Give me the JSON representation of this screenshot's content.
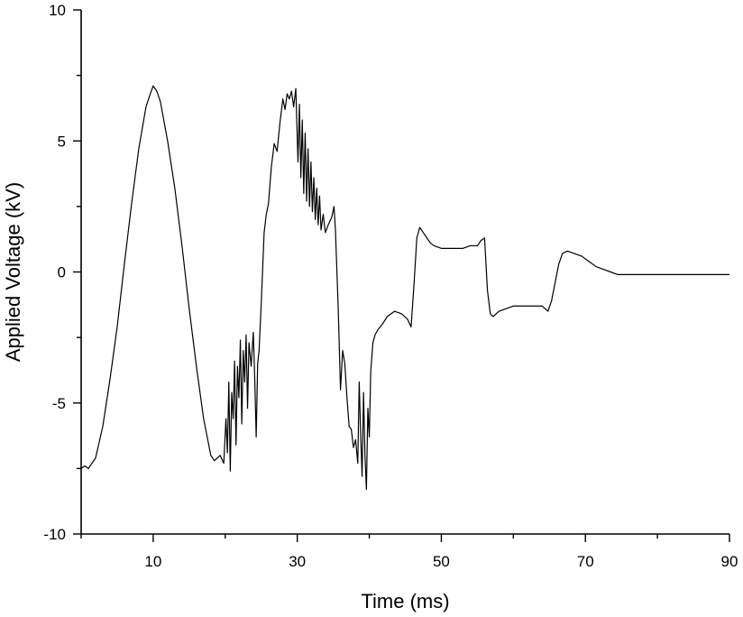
{
  "chart_data": {
    "type": "line",
    "xlabel": "Time (ms)",
    "ylabel": "Applied Voltage (kV)",
    "xlim": [
      0,
      90
    ],
    "ylim": [
      -10,
      10
    ],
    "x_ticks_major": [
      10,
      30,
      50,
      70,
      90
    ],
    "x_ticks_minor": [
      0,
      20,
      40,
      60,
      80
    ],
    "y_ticks_major": [
      -10,
      -5,
      0,
      5,
      10
    ],
    "y_ticks_minor": [
      -7.5,
      -2.5,
      2.5,
      7.5
    ],
    "grid": false,
    "series": [
      {
        "color": "#000000",
        "x": [
          0,
          0.5,
          1,
          2,
          3,
          4,
          5,
          6,
          7,
          8,
          9,
          9.6,
          10,
          10.5,
          11,
          12,
          13,
          14,
          15,
          16,
          17,
          18,
          18.5,
          19.3,
          19.8,
          20.1,
          20.3,
          20.5,
          20.7,
          20.9,
          21.1,
          21.3,
          21.5,
          21.7,
          21.9,
          22.1,
          22.3,
          22.5,
          22.7,
          22.9,
          23.1,
          23.3,
          23.6,
          23.9,
          24.1,
          24.3,
          24.5,
          24.7,
          25,
          25.4,
          25.7,
          26,
          26.4,
          26.8,
          27.2,
          27.6,
          28,
          28.3,
          28.6,
          28.9,
          29.2,
          29.5,
          29.8,
          30.1,
          30.3,
          30.5,
          30.7,
          30.9,
          31.1,
          31.3,
          31.5,
          31.7,
          31.9,
          32.1,
          32.3,
          32.5,
          32.7,
          32.9,
          33.1,
          33.3,
          33.6,
          33.9,
          34.3,
          34.8,
          35.1,
          35.3,
          35.7,
          36,
          36.3,
          36.6,
          36.9,
          37.2,
          37.5,
          37.8,
          38.1,
          38.4,
          38.6,
          38.8,
          39,
          39.2,
          39.4,
          39.6,
          39.8,
          40,
          40.2,
          40.5,
          40.8,
          41.2,
          41.8,
          42.5,
          43.5,
          44.5,
          45.3,
          45.8,
          46.2,
          46.6,
          47,
          47.5,
          48,
          48.5,
          49,
          50,
          51,
          52,
          53,
          54,
          55,
          55.5,
          56,
          56.4,
          56.8,
          57.2,
          58,
          59,
          60,
          61,
          62,
          63,
          64,
          64.8,
          65.3,
          65.8,
          66.3,
          66.8,
          67.5,
          68.5,
          69.5,
          70.5,
          71.5,
          72.5,
          73.5,
          74.5,
          75.5,
          76.5,
          78,
          80,
          82,
          84,
          86,
          88,
          90
        ],
        "y": [
          -7.5,
          -7.4,
          -7.5,
          -7.1,
          -5.9,
          -4.1,
          -2.1,
          0.3,
          2.6,
          4.7,
          6.3,
          6.8,
          7.1,
          6.9,
          6.5,
          5.0,
          3.2,
          1.0,
          -1.4,
          -3.6,
          -5.6,
          -7.0,
          -7.2,
          -7.0,
          -7.3,
          -5.6,
          -6.9,
          -4.2,
          -7.6,
          -4.6,
          -5.6,
          -3.4,
          -6.6,
          -3.6,
          -4.8,
          -2.6,
          -5.8,
          -3.0,
          -4.2,
          -2.4,
          -5.2,
          -2.7,
          -3.6,
          -2.3,
          -4.1,
          -6.3,
          -3.5,
          -3.0,
          -1.2,
          1.5,
          2.2,
          2.6,
          4.0,
          4.9,
          4.6,
          5.7,
          6.6,
          6.2,
          6.8,
          6.6,
          6.9,
          6.3,
          7.0,
          4.2,
          6.4,
          3.6,
          5.8,
          3.0,
          5.3,
          2.7,
          4.7,
          2.5,
          4.2,
          2.3,
          3.6,
          2.0,
          3.2,
          1.8,
          2.9,
          1.6,
          2.2,
          1.5,
          1.8,
          2.1,
          2.5,
          1.6,
          -1.5,
          -4.5,
          -3.0,
          -3.5,
          -4.8,
          -5.9,
          -6.0,
          -6.7,
          -6.4,
          -7.3,
          -4.2,
          -6.2,
          -7.8,
          -4.6,
          -7.0,
          -8.3,
          -5.2,
          -6.3,
          -3.8,
          -2.7,
          -2.4,
          -2.2,
          -2.0,
          -1.7,
          -1.5,
          -1.6,
          -1.8,
          -2.1,
          -0.5,
          1.3,
          1.7,
          1.5,
          1.3,
          1.1,
          1.0,
          0.9,
          0.9,
          0.9,
          0.9,
          1.0,
          1.0,
          1.2,
          1.3,
          -0.7,
          -1.6,
          -1.7,
          -1.5,
          -1.4,
          -1.3,
          -1.3,
          -1.3,
          -1.3,
          -1.3,
          -1.5,
          -1.1,
          -0.4,
          0.3,
          0.7,
          0.8,
          0.7,
          0.6,
          0.4,
          0.2,
          0.1,
          0.0,
          -0.1,
          -0.1,
          -0.1,
          -0.1,
          -0.1,
          -0.1,
          -0.1,
          -0.1,
          -0.1,
          -0.1
        ]
      }
    ]
  }
}
